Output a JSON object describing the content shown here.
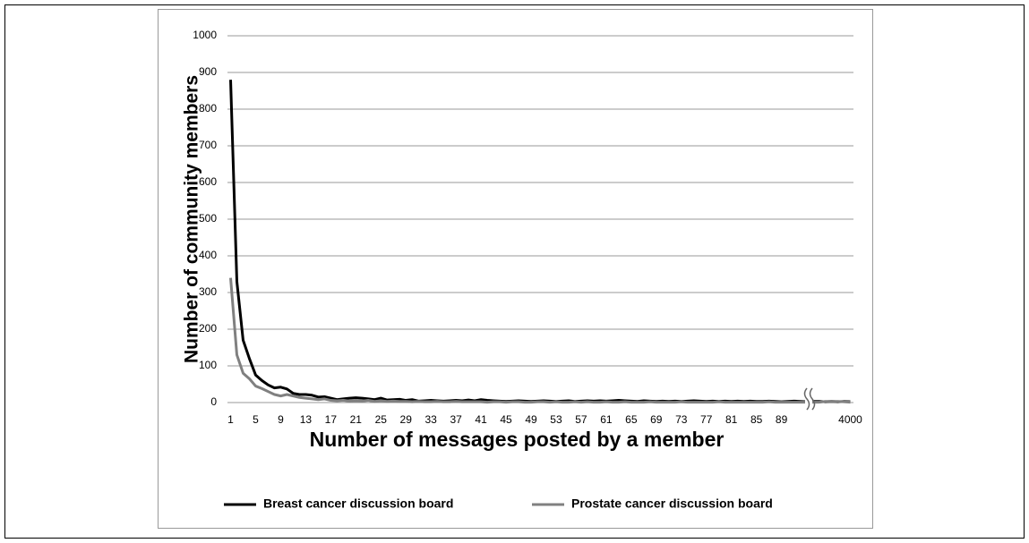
{
  "chart_data": {
    "type": "line",
    "xlabel": "Number of messages posted by a member",
    "ylabel": "Number of community members",
    "categories": [
      1,
      null,
      null,
      null,
      5,
      null,
      null,
      null,
      9,
      null,
      null,
      null,
      13,
      null,
      null,
      null,
      17,
      null,
      null,
      null,
      21,
      null,
      null,
      null,
      25,
      null,
      null,
      null,
      29,
      null,
      null,
      null,
      33,
      null,
      null,
      null,
      37,
      null,
      null,
      null,
      41,
      null,
      null,
      null,
      45,
      null,
      null,
      null,
      49,
      null,
      null,
      null,
      53,
      null,
      null,
      null,
      57,
      null,
      null,
      null,
      61,
      null,
      null,
      null,
      65,
      null,
      null,
      null,
      69,
      null,
      null,
      null,
      73,
      null,
      null,
      null,
      77,
      null,
      null,
      null,
      81,
      null,
      null,
      null,
      85,
      null,
      null,
      null,
      89,
      null,
      null,
      null,
      null,
      null,
      null,
      null,
      null,
      null,
      null,
      4000
    ],
    "series": [
      {
        "name": "Breast cancer discussion board",
        "color": "#000000",
        "values": [
          880,
          330,
          170,
          120,
          75,
          60,
          48,
          40,
          42,
          37,
          25,
          22,
          22,
          20,
          15,
          16,
          12,
          8,
          10,
          12,
          13,
          12,
          10,
          8,
          12,
          7,
          8,
          9,
          6,
          8,
          4,
          5,
          6,
          5,
          4,
          5,
          6,
          5,
          7,
          5,
          8,
          6,
          5,
          4,
          3,
          4,
          5,
          4,
          3,
          4,
          5,
          4,
          3,
          4,
          5,
          3,
          4,
          5,
          4,
          5,
          4,
          5,
          6,
          5,
          4,
          3,
          5,
          4,
          3,
          4,
          3,
          4,
          3,
          4,
          5,
          4,
          3,
          4,
          3,
          4,
          3,
          4,
          3,
          4,
          3,
          3,
          4,
          3,
          2,
          3,
          4,
          3,
          2,
          3,
          3,
          2,
          3,
          2,
          3,
          2
        ]
      },
      {
        "name": "Prostate cancer discussion board",
        "color": "#808080",
        "values": [
          340,
          130,
          80,
          65,
          45,
          38,
          30,
          22,
          18,
          22,
          18,
          14,
          12,
          10,
          8,
          10,
          6,
          5,
          6,
          4,
          5,
          4,
          6,
          3,
          5,
          3,
          4,
          3,
          3,
          2,
          3,
          2,
          2,
          3,
          2,
          2,
          3,
          2,
          2,
          2,
          2,
          1,
          2,
          2,
          1,
          2,
          2,
          1,
          1,
          2,
          2,
          1,
          2,
          1,
          1,
          2,
          1,
          2,
          1,
          1,
          2,
          1,
          1,
          2,
          1,
          1,
          1,
          2,
          1,
          1,
          1,
          1,
          2,
          1,
          1,
          1,
          1,
          1,
          2,
          1,
          1,
          1,
          1,
          1,
          1,
          1,
          2,
          1,
          1,
          1,
          1,
          1,
          1,
          1,
          1,
          3,
          3,
          3,
          2,
          1
        ]
      }
    ],
    "ylim": [
      0,
      1000
    ],
    "yticks": [
      0,
      100,
      200,
      300,
      400,
      500,
      600,
      700,
      800,
      900,
      1000
    ],
    "grid": true,
    "legend": "bottom"
  }
}
